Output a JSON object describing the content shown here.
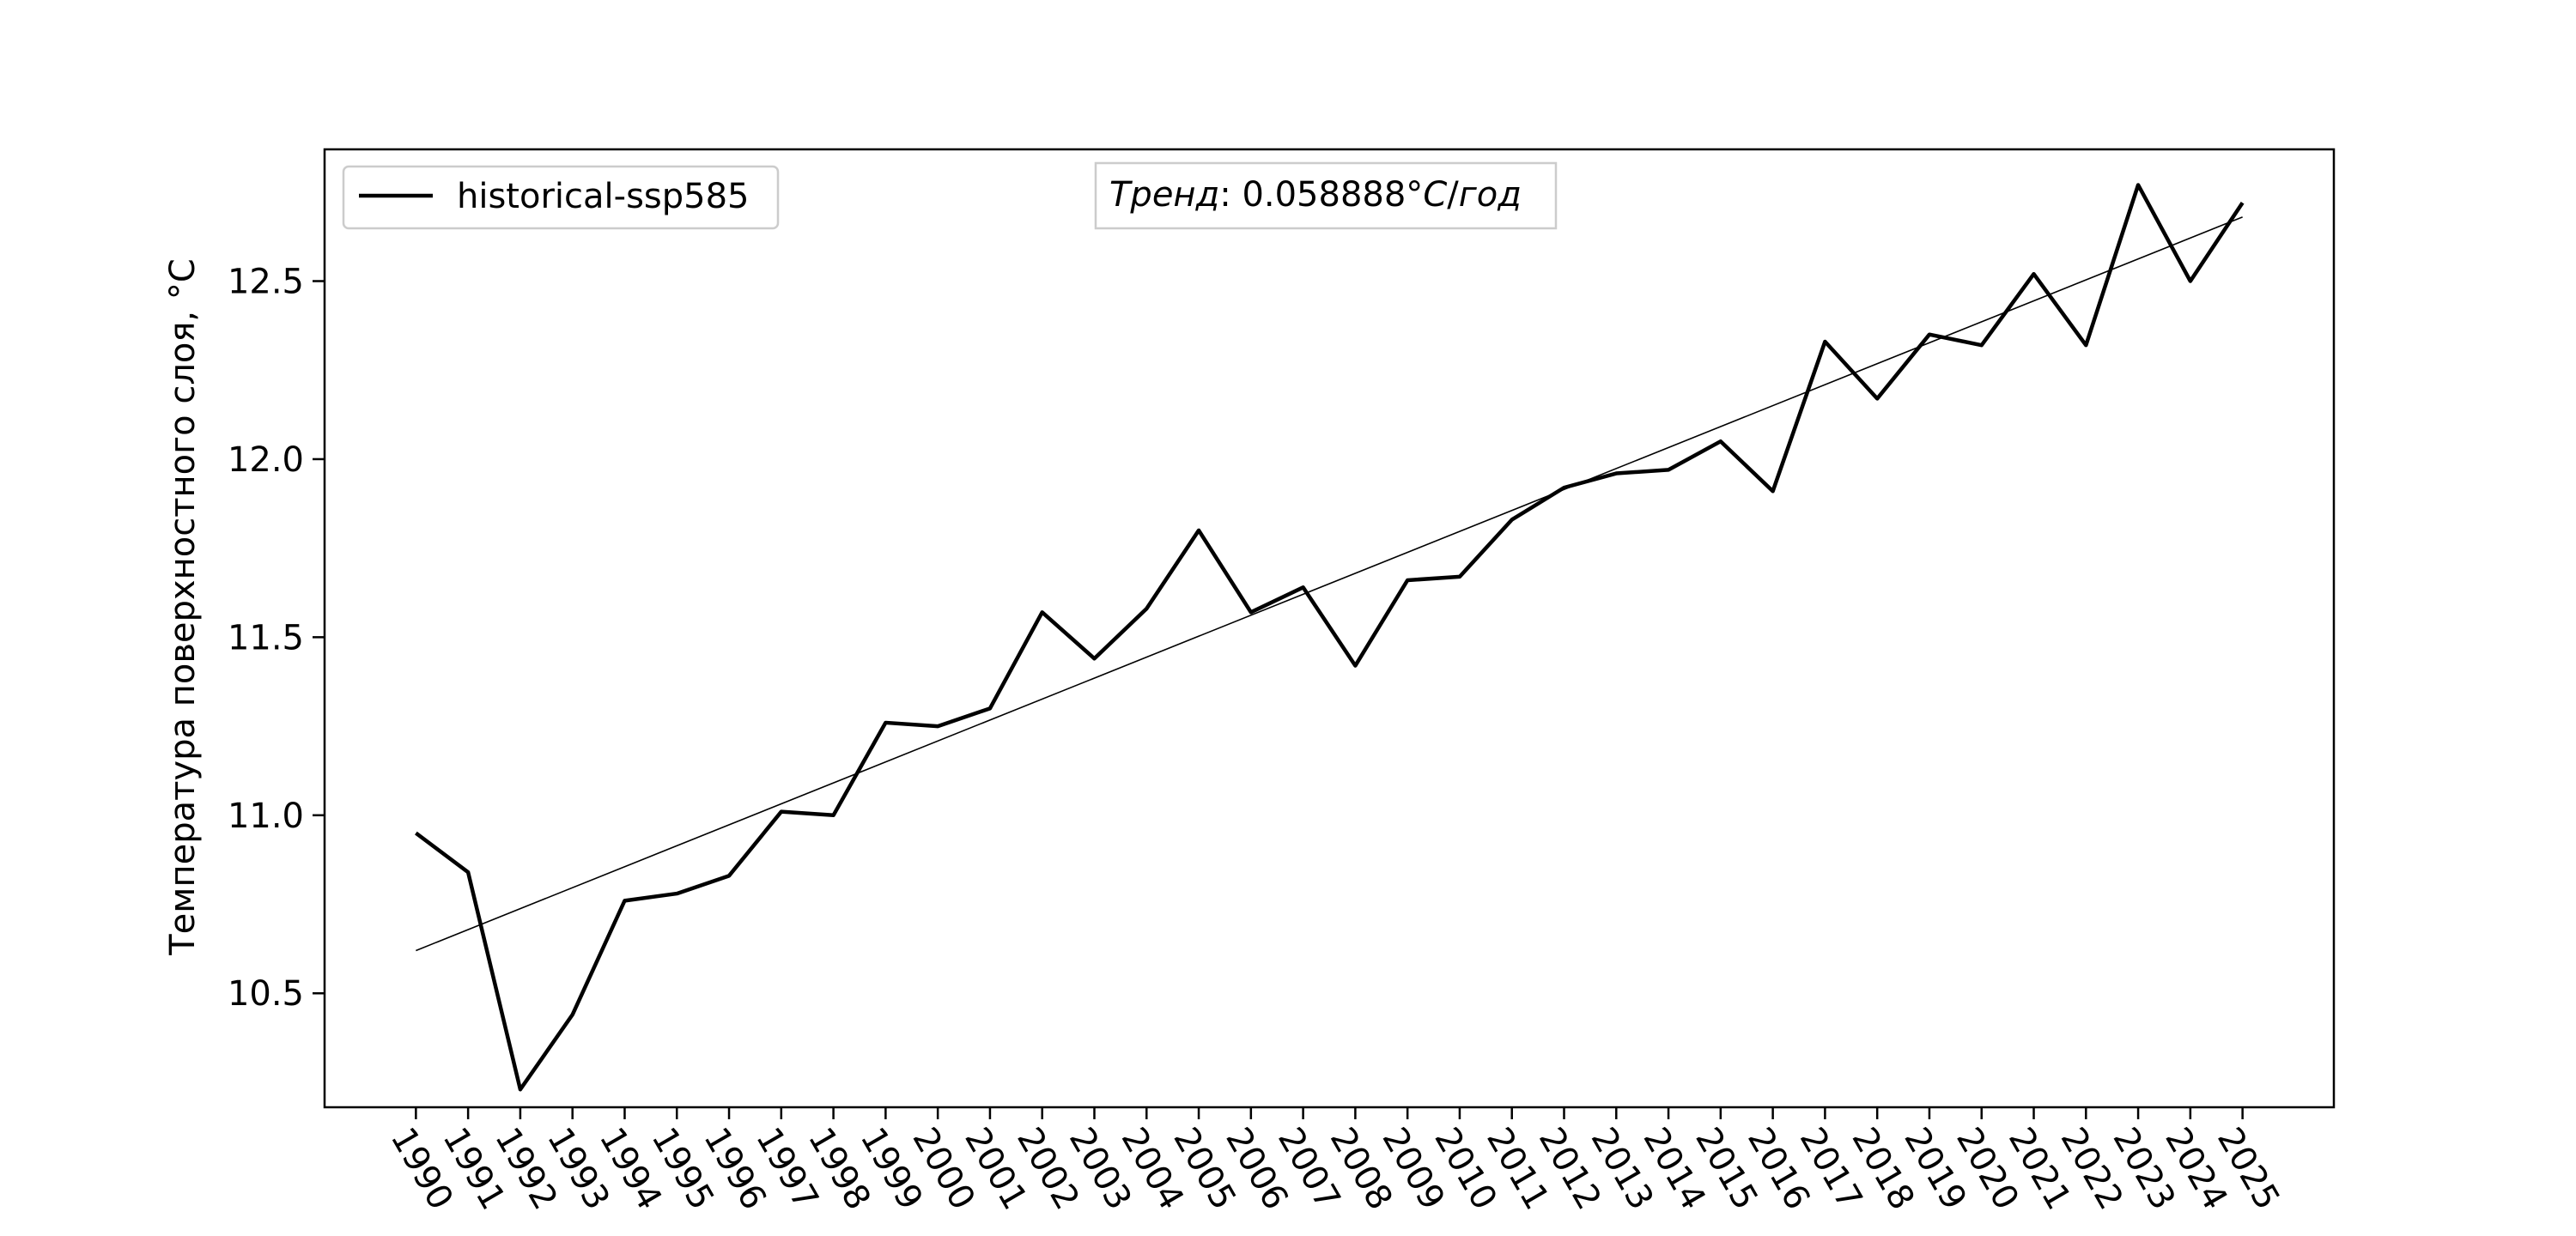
{
  "chart_data": {
    "type": "line",
    "title": "",
    "xlabel": "",
    "ylabel": "Температура поверхностного слоя, °C",
    "ylim": [
      10.18,
      12.87
    ],
    "xlim": [
      1988.25,
      2026.75
    ],
    "yticks": [
      10.5,
      11.0,
      11.5,
      12.0,
      12.5
    ],
    "ytick_labels": [
      "10.5",
      "11.0",
      "11.5",
      "12.0",
      "12.5"
    ],
    "x": [
      1990,
      1991,
      1992,
      1993,
      1994,
      1995,
      1996,
      1997,
      1998,
      1999,
      2000,
      2001,
      2002,
      2003,
      2004,
      2005,
      2006,
      2007,
      2008,
      2009,
      2010,
      2011,
      2012,
      2013,
      2014,
      2015,
      2016,
      2017,
      2018,
      2019,
      2020,
      2021,
      2022,
      2023,
      2024,
      2025
    ],
    "xtick_labels": [
      "1990",
      "1991",
      "1992",
      "1993",
      "1994",
      "1995",
      "1996",
      "1997",
      "1998",
      "1999",
      "2000",
      "2001",
      "2002",
      "2003",
      "2004",
      "2005",
      "2006",
      "2007",
      "2008",
      "2009",
      "2010",
      "2011",
      "2012",
      "2013",
      "2014",
      "2015",
      "2016",
      "2017",
      "2018",
      "2019",
      "2020",
      "2021",
      "2022",
      "2023",
      "2024",
      "2025"
    ],
    "series": [
      {
        "name": "historical-ssp585",
        "color": "#000000",
        "values": [
          10.95,
          10.84,
          10.23,
          10.44,
          10.76,
          10.78,
          10.83,
          11.01,
          11.0,
          11.26,
          11.25,
          11.3,
          11.57,
          11.44,
          11.58,
          11.8,
          11.57,
          11.64,
          11.42,
          11.66,
          11.67,
          11.83,
          11.92,
          11.96,
          11.97,
          12.05,
          11.91,
          12.33,
          12.17,
          12.35,
          12.32,
          12.52,
          12.32,
          12.77,
          12.5,
          12.72
        ]
      }
    ],
    "trend": {
      "start": [
        1990,
        10.62
      ],
      "end": [
        2025,
        12.68
      ],
      "label": "Тренд: 0.058888°C/год",
      "label_parts": [
        "Тренд",
        ": 0.058888°",
        "C",
        "/",
        "год"
      ]
    },
    "legend": {
      "placement": "top-left",
      "entries": [
        "historical-ssp585"
      ]
    },
    "trend_box_placement": "top-center",
    "grid": false
  }
}
